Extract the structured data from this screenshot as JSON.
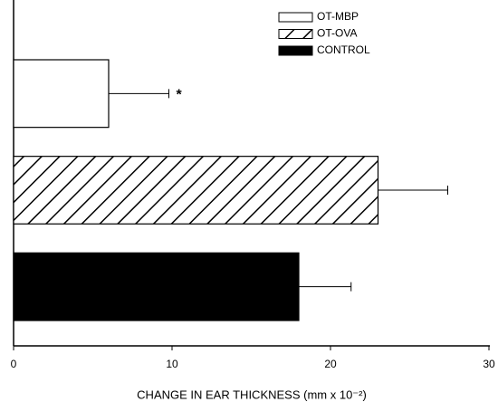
{
  "chart_data": {
    "type": "barh",
    "xlabel": "CHANGE IN EAR THICKNESS (mm x 10⁻²)",
    "series": [
      {
        "name": "OT-MBP",
        "fill": "open",
        "values": [
          6
        ],
        "errors": [
          3.8
        ],
        "annotation": "*"
      },
      {
        "name": "OT-OVA",
        "fill": "hatched",
        "values": [
          23
        ],
        "errors": [
          4.4
        ]
      },
      {
        "name": "CONTROL",
        "fill": "solid",
        "values": [
          18
        ],
        "errors": [
          3.3
        ]
      }
    ],
    "xlim": [
      0,
      30
    ],
    "xticks": [
      0,
      10,
      20,
      30
    ],
    "grid": false,
    "legend": "upper right"
  }
}
